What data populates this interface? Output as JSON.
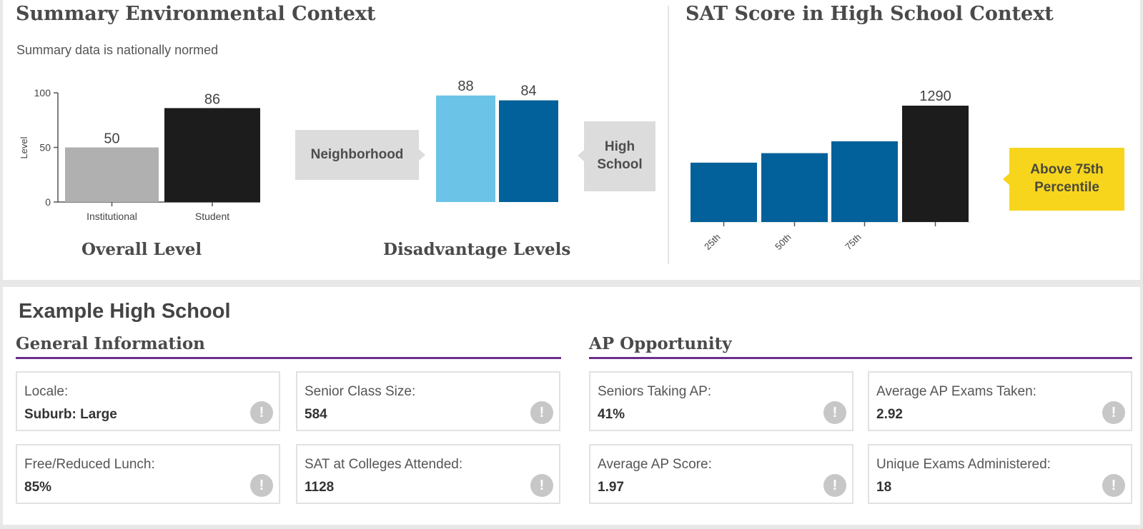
{
  "summary": {
    "title": "Summary Environmental Context",
    "subtitle": "Summary data is nationally normed",
    "overall_caption": "Overall Level",
    "disadvantage_caption": "Disadvantage Levels",
    "neighborhood_label": "Neighborhood",
    "high_school_label": "High School"
  },
  "sat": {
    "title": "SAT Score in High School Context",
    "percentile_callout": "Above 75th Percentile"
  },
  "colors": {
    "gray_bar": "#b0b0b0",
    "black_bar": "#1c1c1c",
    "light_blue": "#6cc3e8",
    "dark_blue": "#02609a",
    "yellow": "#f7d51d",
    "purple_rule": "#6b2f8a"
  },
  "chart_data": [
    {
      "type": "bar",
      "title": "Overall Level",
      "categories": [
        "Institutional",
        "Student"
      ],
      "values": [
        50,
        86
      ],
      "data_labels": [
        "50",
        "86"
      ],
      "ylabel": "Level",
      "ylim": [
        0,
        100
      ],
      "yticks": [
        "0",
        "50",
        "100"
      ]
    },
    {
      "type": "bar",
      "title": "Disadvantage Levels",
      "categories": [
        "Neighborhood",
        "High School"
      ],
      "values": [
        88,
        84
      ],
      "data_labels": [
        "88",
        "84"
      ],
      "ylim": [
        0,
        100
      ]
    },
    {
      "type": "bar",
      "title": "SAT Score in High School Context",
      "categories": [
        "25th",
        "50th",
        "75th",
        ""
      ],
      "values": [
        1050,
        1090,
        1140,
        1290
      ],
      "data_labels": [
        "",
        "",
        "",
        "1290"
      ],
      "ylim": [
        800,
        1320
      ]
    }
  ],
  "school": {
    "name": "Example High School",
    "general_heading": "General Information",
    "ap_heading": "AP Opportunity",
    "general_cards": [
      {
        "label": "Locale:",
        "value": "Suburb: Large"
      },
      {
        "label": "Senior Class Size:",
        "value": "584"
      },
      {
        "label": "Free/Reduced Lunch:",
        "value": "85%"
      },
      {
        "label": "SAT at Colleges Attended:",
        "value": "1128"
      }
    ],
    "ap_cards": [
      {
        "label": "Seniors Taking AP:",
        "value": "41%"
      },
      {
        "label": "Average AP Exams Taken:",
        "value": "2.92"
      },
      {
        "label": "Average AP Score:",
        "value": "1.97"
      },
      {
        "label": "Unique Exams Administered:",
        "value": "18"
      }
    ],
    "info_icon_glyph": "!"
  }
}
